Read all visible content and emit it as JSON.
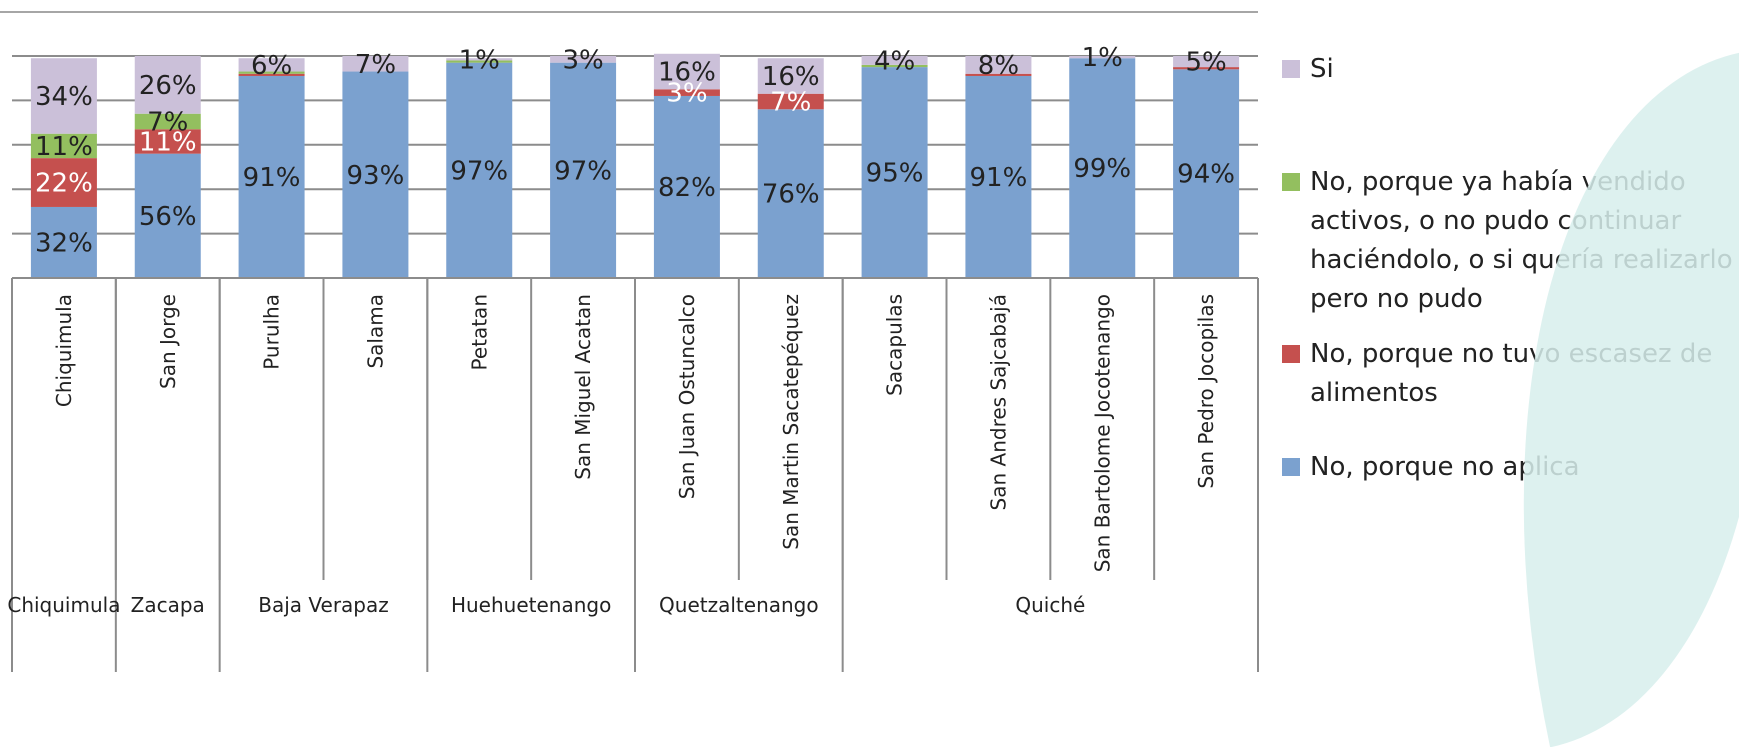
{
  "chart_data": {
    "type": "bar",
    "stacked": true,
    "percent": true,
    "ylim": [
      0,
      100
    ],
    "grid": true,
    "legend_position": "right",
    "categories": [
      "Chiquimula",
      "San Jorge",
      "Purulha",
      "Salama",
      "Petatan",
      "San Miguel Acatan",
      "San Juan Ostuncalco",
      "San Martin Sacatepéquez",
      "Sacapulas",
      "San Andres Sajcabajá",
      "San Bartolome Jocotenango",
      "San Pedro Jocopilas"
    ],
    "groups": [
      {
        "label": "Chiquimula",
        "count": 1
      },
      {
        "label": "Zacapa",
        "count": 1
      },
      {
        "label": "Baja Verapaz",
        "count": 2
      },
      {
        "label": "Huehuetenango",
        "count": 2
      },
      {
        "label": "Quetzaltenango",
        "count": 2
      },
      {
        "label": "Quiché",
        "count": 4
      }
    ],
    "series": [
      {
        "name": "No, porque no aplica",
        "color": "#7ba1cf",
        "values": [
          32,
          56,
          91,
          93,
          97,
          97,
          82,
          76,
          95,
          91,
          99,
          94
        ],
        "labels": [
          "32%",
          "56%",
          "91%",
          "93%",
          "97%",
          "97%",
          "82%",
          "76%",
          "95%",
          "91%",
          "99%",
          "94%"
        ]
      },
      {
        "name": "No, porque no tuvo escasez de alimentos",
        "color": "#c5504e",
        "values": [
          22,
          11,
          1,
          0,
          0,
          0,
          3,
          7,
          0,
          1,
          0,
          1
        ],
        "labels": [
          "22%",
          "11%",
          "",
          "",
          "",
          "",
          "3%",
          "7%",
          "",
          "",
          "",
          ""
        ]
      },
      {
        "name": "No, porque ya había vendido activos, o no pudo continuar haciéndolo, o si quería realizarlo pero no pudo",
        "color": "#93bf5f",
        "values": [
          11,
          7,
          1,
          0,
          1,
          0,
          0,
          0,
          1,
          0,
          0,
          0
        ],
        "labels": [
          "11%",
          "7%",
          "",
          "",
          "",
          "",
          "",
          "",
          "",
          "",
          "",
          ""
        ]
      },
      {
        "name": "Si",
        "color": "#cbc0d9",
        "values": [
          34,
          26,
          6,
          7,
          1,
          3,
          16,
          16,
          4,
          8,
          1,
          5
        ],
        "labels": [
          "34%",
          "26%",
          "6%",
          "7%",
          "1%",
          "3%",
          "16%",
          "16%",
          "4%",
          "8%",
          "1%",
          "5%"
        ]
      }
    ]
  }
}
